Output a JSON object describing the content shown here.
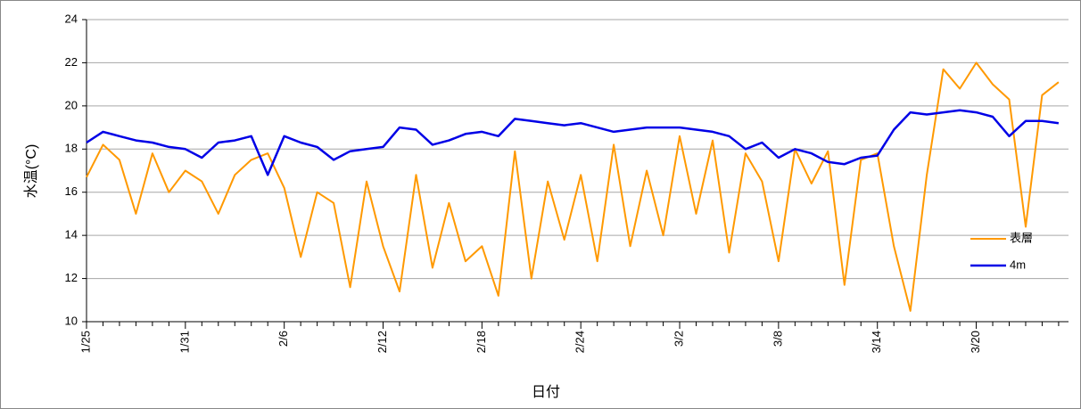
{
  "chart_data": {
    "type": "line",
    "ylabel": "水温(°C)",
    "xlabel": "日付",
    "categories": [
      "1/25",
      null,
      null,
      null,
      null,
      null,
      "1/31",
      null,
      null,
      null,
      null,
      null,
      "2/6",
      null,
      null,
      null,
      null,
      null,
      "2/12",
      null,
      null,
      null,
      null,
      null,
      "2/18",
      null,
      null,
      null,
      null,
      null,
      "2/24",
      null,
      null,
      null,
      null,
      null,
      "3/2",
      null,
      null,
      null,
      null,
      null,
      "3/8",
      null,
      null,
      null,
      null,
      null,
      "3/14",
      null,
      null,
      null,
      null,
      null,
      "3/20",
      null,
      null,
      null,
      null,
      null
    ],
    "series": [
      {
        "name": "表層",
        "color": "#ff9900",
        "values": [
          16.7,
          18.2,
          17.5,
          15.0,
          17.8,
          16.0,
          17.0,
          16.5,
          15.0,
          16.8,
          17.5,
          17.8,
          16.2,
          13.0,
          16.0,
          15.5,
          11.6,
          16.5,
          13.5,
          11.4,
          16.8,
          12.5,
          15.5,
          12.8,
          13.5,
          11.2,
          17.9,
          12.0,
          16.5,
          13.8,
          16.8,
          12.8,
          18.2,
          13.5,
          17.0,
          14.0,
          18.6,
          15.0,
          18.4,
          13.2,
          17.8,
          16.5,
          12.8,
          18.0,
          16.4,
          17.9,
          11.7,
          17.5,
          17.8,
          13.5,
          10.5,
          16.8,
          21.7,
          20.8,
          22.0,
          21.0,
          20.3,
          14.4,
          20.5,
          21.1
        ]
      },
      {
        "name": "4m",
        "color": "#0000e6",
        "values": [
          18.3,
          18.8,
          18.6,
          18.4,
          18.3,
          18.1,
          18.0,
          17.6,
          18.3,
          18.4,
          18.6,
          16.8,
          18.6,
          18.3,
          18.1,
          17.5,
          17.9,
          18.0,
          18.1,
          19.0,
          18.9,
          18.2,
          18.4,
          18.7,
          18.8,
          18.6,
          19.4,
          19.3,
          19.2,
          19.1,
          19.2,
          19.0,
          18.8,
          18.9,
          19.0,
          19.0,
          19.0,
          18.9,
          18.8,
          18.6,
          18.0,
          18.3,
          17.6,
          18.0,
          17.8,
          17.4,
          17.3,
          17.6,
          17.7,
          18.9,
          19.7,
          19.6,
          19.7,
          19.8,
          19.7,
          19.5,
          18.6,
          19.3,
          19.3,
          19.2
        ]
      }
    ],
    "ylim": [
      10,
      24
    ],
    "yticks": [
      10,
      12,
      14,
      16,
      18,
      20,
      22,
      24
    ],
    "grid": true
  }
}
